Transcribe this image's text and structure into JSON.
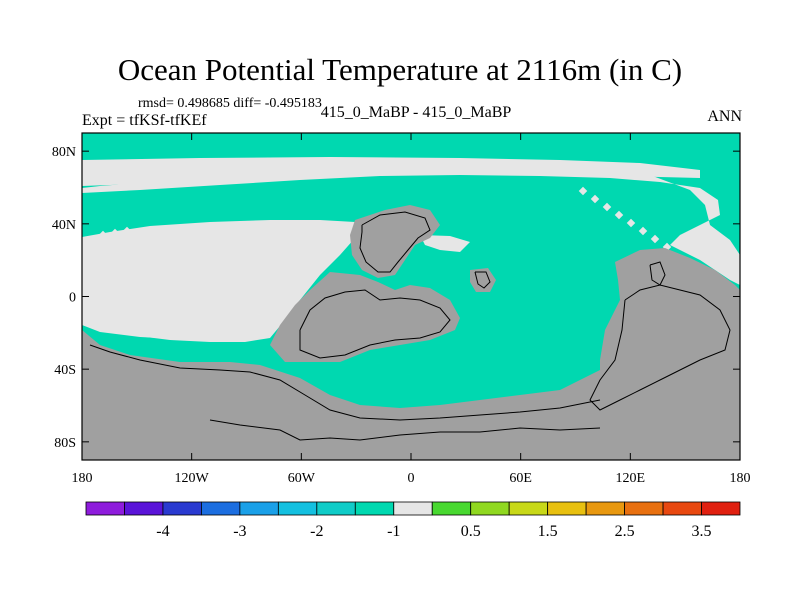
{
  "title": "Ocean Potential Temperature at 2116m (in C)",
  "stats": "rmsd= 0.498685 diff= -0.495183",
  "expt": "Expt = tfKSf-tfKEf",
  "center_label": "415_0_MaBP - 415_0_MaBP",
  "season": "ANN",
  "colors": {
    "land": "#a0a0a0",
    "near_zero": "#e6e6e6",
    "minus_one": "#00d8b0"
  },
  "chart_data": {
    "type": "heatmap",
    "x_ticks": [
      "180",
      "120W",
      "60W",
      "0",
      "60E",
      "120E",
      "180"
    ],
    "y_ticks": [
      "80N",
      "40N",
      "0",
      "40S",
      "80S"
    ],
    "colorbar": {
      "colors": [
        "#8e1cdc",
        "#5a14d8",
        "#2a3ad0",
        "#1c6ee0",
        "#1aa0e8",
        "#14c0e0",
        "#10ccc8",
        "#00d8b0",
        "#e6e6e6",
        "#48d830",
        "#90d820",
        "#c8d818",
        "#e8c010",
        "#e89810",
        "#e87010",
        "#e84810",
        "#e02010"
      ],
      "labels": [
        {
          "text": "-4",
          "index": 1
        },
        {
          "text": "-3",
          "index": 3
        },
        {
          "text": "-2",
          "index": 5
        },
        {
          "text": "-1",
          "index": 7
        },
        {
          "text": "0.5",
          "index": 9
        },
        {
          "text": "1.5",
          "index": 11
        },
        {
          "text": "2.5",
          "index": 13
        },
        {
          "text": "3.5",
          "index": 15
        }
      ]
    }
  }
}
